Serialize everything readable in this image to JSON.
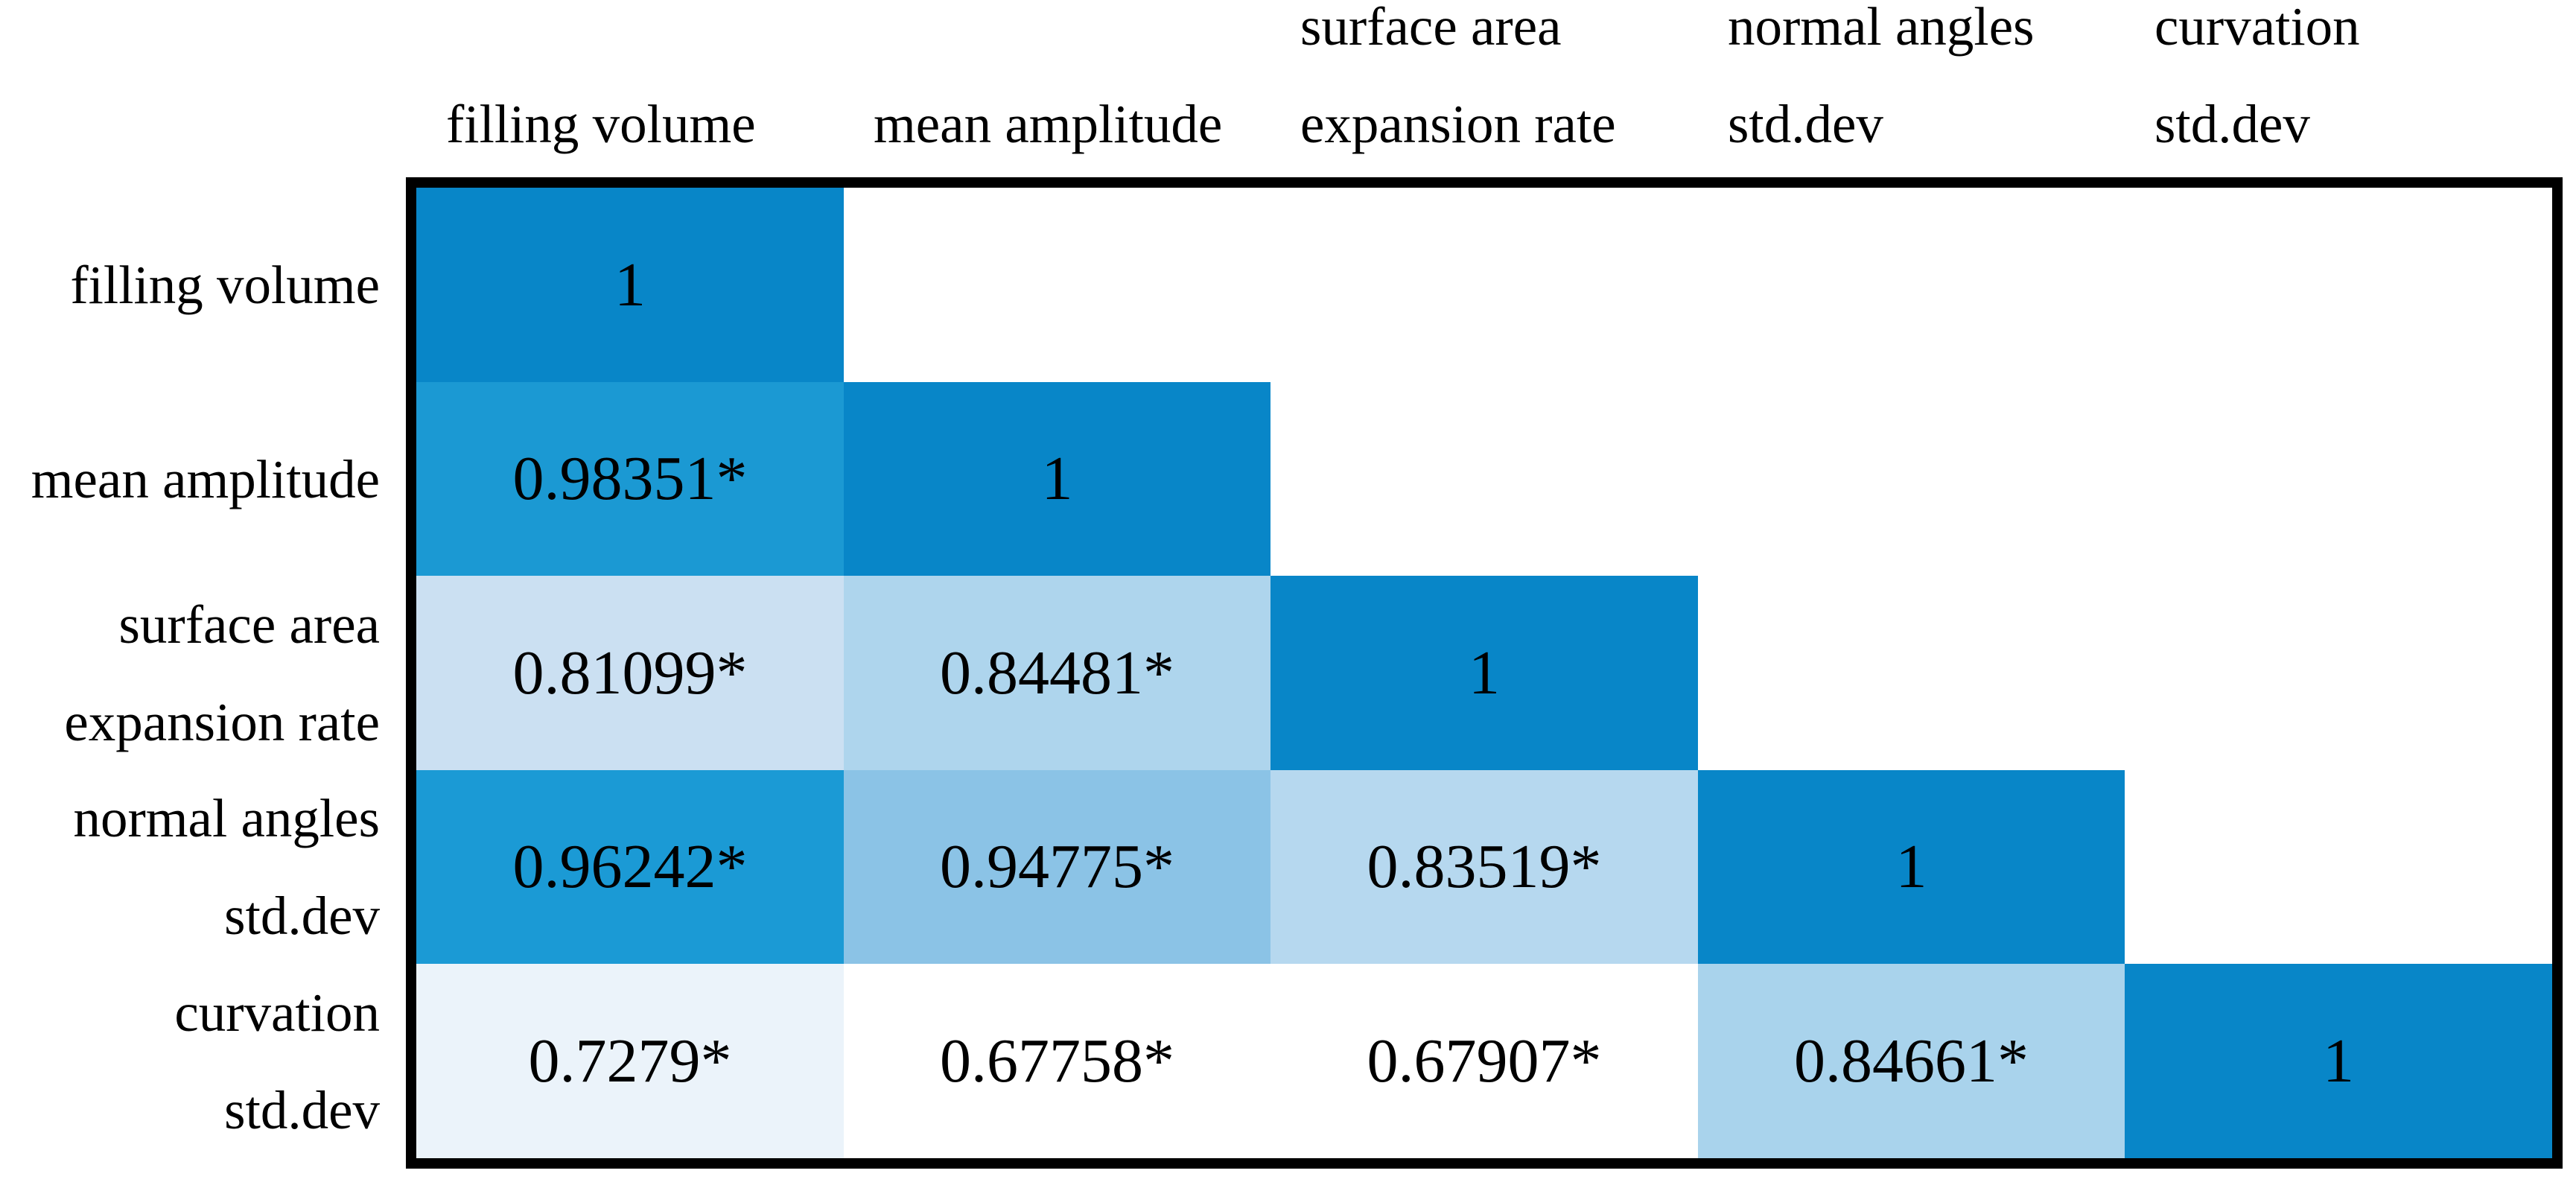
{
  "figure": {
    "kind": "correlation-matrix",
    "background": "#ffffff",
    "border_color": "#000000"
  },
  "grid": {
    "columns": [
      {
        "id": "filling-volume",
        "lines": [
          "filling volume"
        ]
      },
      {
        "id": "mean-amplitude",
        "lines": [
          "mean amplitude"
        ]
      },
      {
        "id": "surface-area-expansion-rate",
        "lines": [
          "surface area",
          "expansion rate"
        ]
      },
      {
        "id": "normal-angles-std-dev",
        "lines": [
          "normal angles",
          "std.dev"
        ]
      },
      {
        "id": "curvation-std-dev",
        "lines": [
          "curvation",
          "std.dev"
        ]
      }
    ],
    "rows": [
      {
        "id": "filling-volume",
        "lines": [
          "filling volume"
        ]
      },
      {
        "id": "mean-amplitude",
        "lines": [
          "mean amplitude"
        ]
      },
      {
        "id": "surface-area-expansion-rate",
        "lines": [
          "surface area",
          "expansion rate"
        ]
      },
      {
        "id": "normal-angles-std-dev",
        "lines": [
          "normal angles",
          "std.dev"
        ]
      },
      {
        "id": "curvation-std-dev",
        "lines": [
          "curvation",
          "std.dev"
        ]
      }
    ],
    "cells": [
      {
        "row": 0,
        "col": 0,
        "text": "1",
        "color": "#0886c8"
      },
      {
        "row": 1,
        "col": 0,
        "text": "0.98351*",
        "color": "#1b99d3"
      },
      {
        "row": 1,
        "col": 1,
        "text": "1",
        "color": "#0886c8"
      },
      {
        "row": 2,
        "col": 0,
        "text": "0.81099*",
        "color": "#cbe0f2"
      },
      {
        "row": 2,
        "col": 1,
        "text": "0.84481*",
        "color": "#aed5ed"
      },
      {
        "row": 2,
        "col": 2,
        "text": "1",
        "color": "#0886c8"
      },
      {
        "row": 3,
        "col": 0,
        "text": "0.96242*",
        "color": "#1b9ad5"
      },
      {
        "row": 3,
        "col": 1,
        "text": "0.94775*",
        "color": "#8bc3e6"
      },
      {
        "row": 3,
        "col": 2,
        "text": "0.83519*",
        "color": "#b6d8ef"
      },
      {
        "row": 3,
        "col": 3,
        "text": "1",
        "color": "#0886c8"
      },
      {
        "row": 4,
        "col": 0,
        "text": "0.7279*",
        "color": "#ebf3fa"
      },
      {
        "row": 4,
        "col": 1,
        "text": "0.67758*",
        "color": "#ffffff"
      },
      {
        "row": 4,
        "col": 2,
        "text": "0.67907*",
        "color": "#ffffff"
      },
      {
        "row": 4,
        "col": 3,
        "text": "0.84661*",
        "color": "#a9d3ec"
      },
      {
        "row": 4,
        "col": 4,
        "text": "1",
        "color": "#0886c8"
      }
    ]
  },
  "chart_data": {
    "type": "heatmap",
    "title": "",
    "layout": "lower-triangle",
    "categories": [
      "filling volume",
      "mean amplitude",
      "surface area expansion rate",
      "normal angles std.dev",
      "curvation std.dev"
    ],
    "matrix": [
      [
        1,
        null,
        null,
        null,
        null
      ],
      [
        0.98351,
        1,
        null,
        null,
        null
      ],
      [
        0.81099,
        0.84481,
        1,
        null,
        null
      ],
      [
        0.96242,
        0.94775,
        0.83519,
        1,
        null
      ],
      [
        0.7279,
        0.67758,
        0.67907,
        0.84661,
        1
      ]
    ],
    "cell_text": [
      [
        "1"
      ],
      [
        "0.98351*",
        "1"
      ],
      [
        "0.81099*",
        "0.84481*",
        "1"
      ],
      [
        "0.96242*",
        "0.94775*",
        "0.83519*",
        "1"
      ],
      [
        "0.7279*",
        "0.67758*",
        "0.67907*",
        "0.84661*",
        "1"
      ]
    ],
    "significance_marker": "*",
    "colormap": "white (low) to blue (high)",
    "value_range": [
      0.67758,
      1
    ],
    "grid": false,
    "legend": "none"
  }
}
